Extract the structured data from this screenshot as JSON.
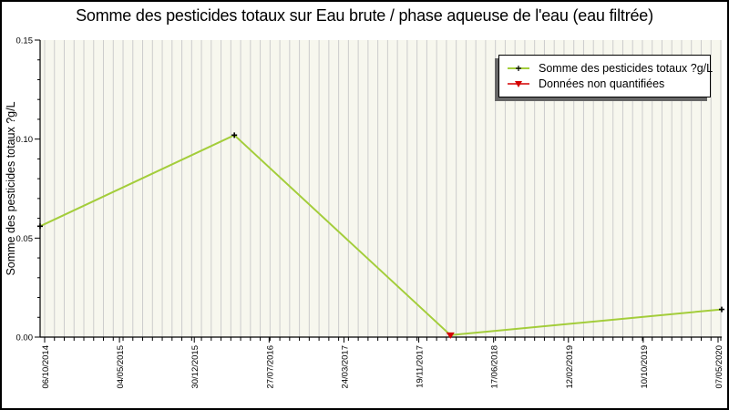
{
  "colors": {
    "line": "#A3CD3A",
    "marker": "#000000",
    "non_quantified_marker": "#D40000",
    "plot_background": "#F7F7EE",
    "gridline": "#CCCCCC",
    "axis": "#000000",
    "legend_border": "#000000",
    "legend_shadow": "#666666",
    "background": "#FFFFFF",
    "text": "#000000"
  },
  "legend": {
    "items": [
      {
        "label": "Somme des pesticides totaux ?g/L",
        "marker": "green-line-with-black-plus"
      },
      {
        "label": "Données non quantifiées",
        "marker": "red-line-with-red-arrow"
      }
    ]
  },
  "chart_data": {
    "type": "line",
    "title": "Somme des pesticides totaux sur Eau brute / phase aqueuse de l'eau (eau filtrée)",
    "xlabel": "",
    "ylabel": "Somme des pesticides totaux ?g/L",
    "ylim": [
      0,
      0.15
    ],
    "y_major_ticks": [
      0.15,
      0.1,
      0.05,
      0.0
    ],
    "y_tick_labels": [
      "0.15",
      "0.10",
      "0.05",
      "0.00"
    ],
    "y_minor_step": 0.01,
    "x_tick_labels": [
      "06/10/2014",
      "04/05/2015",
      "30/12/2015",
      "27/07/2016",
      "24/03/2017",
      "19/11/2017",
      "17/06/2018",
      "12/02/2019",
      "10/10/2019",
      "07/05/2020"
    ],
    "grid": "vertical-minor-only",
    "legend_position": "top-right",
    "layout": {
      "vertical_gridlines": 70
    },
    "series": [
      {
        "name": "Somme des pesticides totaux ?g/L",
        "color_key": "line",
        "points": [
          {
            "x_est_date": "06/10/2014",
            "value": 0.056,
            "x_fraction": 0.0,
            "non_quantified": false
          },
          {
            "x_est_date": "avril 2016",
            "value": 0.102,
            "x_fraction": 0.285,
            "non_quantified": false
          },
          {
            "x_est_date": "février 2018",
            "value": 0.001,
            "x_fraction": 0.602,
            "non_quantified": true
          },
          {
            "x_est_date": "07/05/2020",
            "value": 0.014,
            "x_fraction": 1.0,
            "non_quantified": false
          }
        ]
      }
    ]
  }
}
